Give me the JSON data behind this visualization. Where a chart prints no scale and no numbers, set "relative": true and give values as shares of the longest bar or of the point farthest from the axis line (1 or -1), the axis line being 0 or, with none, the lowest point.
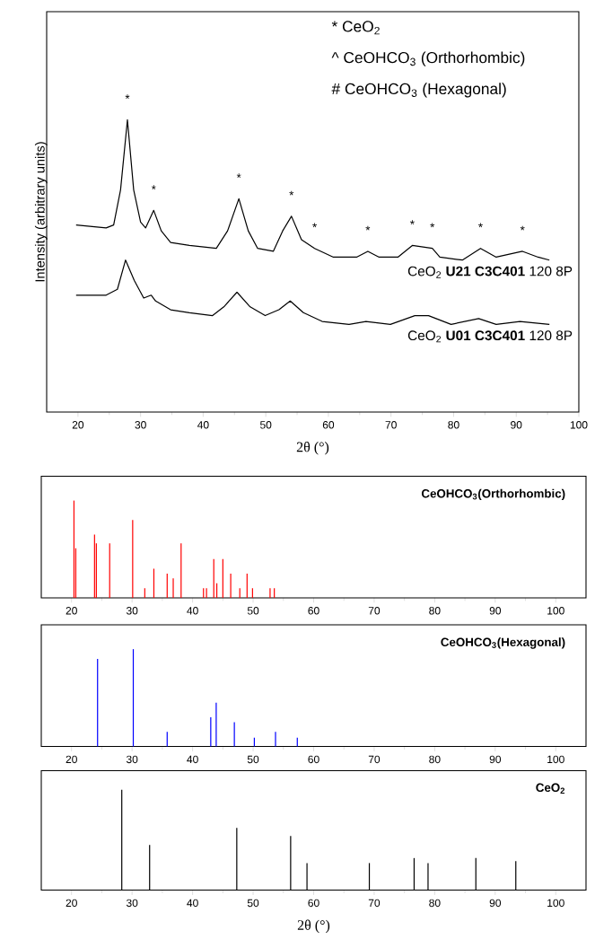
{
  "chart_data": [
    {
      "type": "line",
      "relative": true,
      "xlabel": "2θ (°)",
      "ylabel": "Intensity (arbitrary units)",
      "xlim": [
        15,
        100
      ],
      "xticks": [
        20,
        30,
        40,
        50,
        60,
        70,
        80,
        90,
        100
      ],
      "series": [
        {
          "name": "CeO$_{2}$ **U21 C3C401** 120 8P",
          "color": "#000000",
          "x": [
            19.7,
            24.5,
            25.7,
            26.8,
            27.9,
            28.9,
            30.0,
            30.8,
            32.1,
            33.3,
            34.8,
            37.8,
            42.1,
            43.9,
            45.7,
            47.2,
            48.7,
            51.2,
            52.7,
            54.1,
            55.7,
            57.8,
            60.8,
            64.5,
            66.3,
            68.1,
            71.1,
            73.4,
            76.6,
            77.8,
            81.4,
            84.3,
            86.8,
            91.0,
            93.5,
            95.3
          ],
          "values": [
            0.64,
            0.63,
            0.64,
            0.76,
            1,
            0.76,
            0.65,
            0.63,
            0.69,
            0.62,
            0.58,
            0.57,
            0.56,
            0.62,
            0.73,
            0.62,
            0.56,
            0.55,
            0.62,
            0.67,
            0.59,
            0.56,
            0.53,
            0.53,
            0.55,
            0.53,
            0.53,
            0.57,
            0.56,
            0.53,
            0.52,
            0.56,
            0.53,
            0.55,
            0.53,
            0.52
          ]
        },
        {
          "name": "CeO$_{2}$ **U01 C3C401** 120 8P",
          "color": "#000000",
          "x": [
            19.7,
            24.5,
            26.3,
            27.6,
            29.0,
            30.5,
            31.7,
            32.4,
            34.8,
            37.8,
            41.5,
            43.3,
            45.4,
            47.5,
            49.9,
            52.1,
            53.9,
            56.0,
            59.0,
            63.3,
            66.0,
            69.9,
            73.8,
            76.0,
            79.6,
            84.0,
            86.8,
            90.6,
            95.3
          ],
          "values": [
            0.4,
            0.4,
            0.42,
            0.52,
            0.45,
            0.39,
            0.4,
            0.38,
            0.35,
            0.34,
            0.33,
            0.36,
            0.41,
            0.36,
            0.33,
            0.35,
            0.38,
            0.34,
            0.31,
            0.3,
            0.31,
            0.3,
            0.33,
            0.33,
            0.3,
            0.32,
            0.3,
            0.31,
            0.3
          ]
        }
      ],
      "annotations": [
        "* CeO$_{2}$",
        "^ CeOHCO$_{3}$ (Orthorhombic)",
        "# CeOHCO$_{3}$ (Hexagonal)",
        {
          "text": "*",
          "x": 27.9,
          "y": 1
        },
        {
          "text": "*",
          "x": 32.1,
          "y": 0.69
        },
        {
          "text": "*",
          "x": 45.7,
          "y": 0.73
        },
        {
          "text": "*",
          "x": 54.1,
          "y": 0.67
        },
        {
          "text": "*",
          "x": 57.8,
          "y": 0.56
        },
        {
          "text": "*",
          "x": 66.3,
          "y": 0.55
        },
        {
          "text": "*",
          "x": 73.4,
          "y": 0.57
        },
        {
          "text": "*",
          "x": 76.6,
          "y": 0.56
        },
        {
          "text": "*",
          "x": 84.3,
          "y": 0.56
        },
        {
          "text": "*",
          "x": 91.0,
          "y": 0.55
        }
      ]
    },
    {
      "type": "bar",
      "relative": true,
      "title": "CeOHCO$_{3}$(Orthorhombic)",
      "color": "#ff0000",
      "xlim": [
        15,
        105
      ],
      "xticks": [
        20,
        30,
        40,
        50,
        60,
        70,
        80,
        90,
        100
      ],
      "x": [
        20.4,
        20.7,
        23.8,
        24.1,
        26.3,
        30.1,
        32.1,
        33.6,
        35.8,
        36.8,
        38.1,
        41.8,
        42.3,
        43.5,
        44.0,
        45.0,
        46.3,
        47.8,
        49.0,
        49.9,
        52.8,
        53.5
      ],
      "values": [
        1,
        0.51,
        0.65,
        0.56,
        0.56,
        0.8,
        0.1,
        0.3,
        0.25,
        0.2,
        0.56,
        0.1,
        0.1,
        0.4,
        0.15,
        0.4,
        0.25,
        0.1,
        0.25,
        0.1,
        0.1,
        0.1
      ]
    },
    {
      "type": "bar",
      "relative": true,
      "title": "CeOHCO$_{3}$(Hexagonal)",
      "color": "#0000ff",
      "xlim": [
        15,
        105
      ],
      "xticks": [
        20,
        30,
        40,
        50,
        60,
        70,
        80,
        90,
        100
      ],
      "x": [
        24.3,
        30.2,
        35.8,
        43.0,
        43.9,
        46.9,
        50.2,
        53.7,
        57.3
      ],
      "values": [
        0.9,
        1,
        0.15,
        0.3,
        0.45,
        0.25,
        0.09,
        0.15,
        0.09
      ]
    },
    {
      "type": "bar",
      "relative": true,
      "title": "CeO$_{2}$",
      "color": "#000000",
      "xlabel": "2θ (°)",
      "xlim": [
        15,
        105
      ],
      "xticks": [
        20,
        30,
        40,
        50,
        60,
        70,
        80,
        90,
        100
      ],
      "x": [
        28.3,
        32.9,
        47.3,
        56.2,
        58.9,
        69.2,
        76.6,
        78.9,
        86.8,
        93.4
      ],
      "values": [
        1,
        0.45,
        0.62,
        0.54,
        0.27,
        0.27,
        0.32,
        0.27,
        0.32,
        0.29
      ]
    }
  ]
}
